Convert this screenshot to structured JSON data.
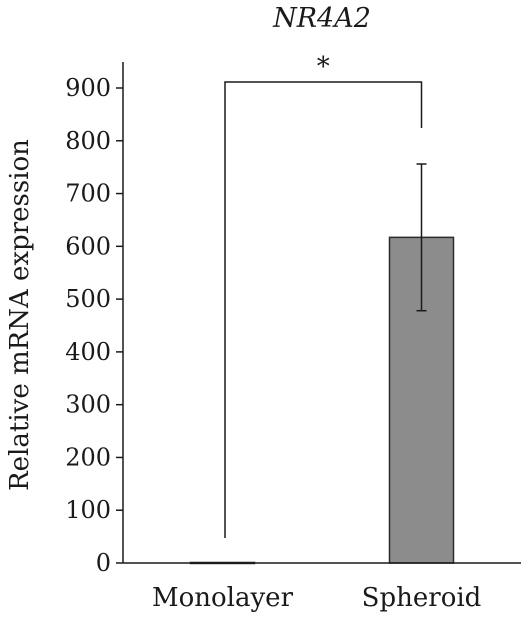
{
  "chart_data": {
    "type": "bar",
    "title": "NR4A2",
    "xlabel": "",
    "ylabel": "Relative mRNA expression",
    "categories": [
      "Monolayer",
      "Spheroid"
    ],
    "values": [
      1,
      617
    ],
    "error": [
      0,
      139
    ],
    "ylim": [
      0,
      900
    ],
    "yticks": [
      0,
      100,
      200,
      300,
      400,
      500,
      600,
      700,
      800,
      900
    ],
    "grid": false,
    "bar_colors": [
      "#4d4d4d",
      "#8c8c8c"
    ],
    "significance": {
      "between": [
        "Monolayer",
        "Spheroid"
      ],
      "label": "*"
    }
  }
}
